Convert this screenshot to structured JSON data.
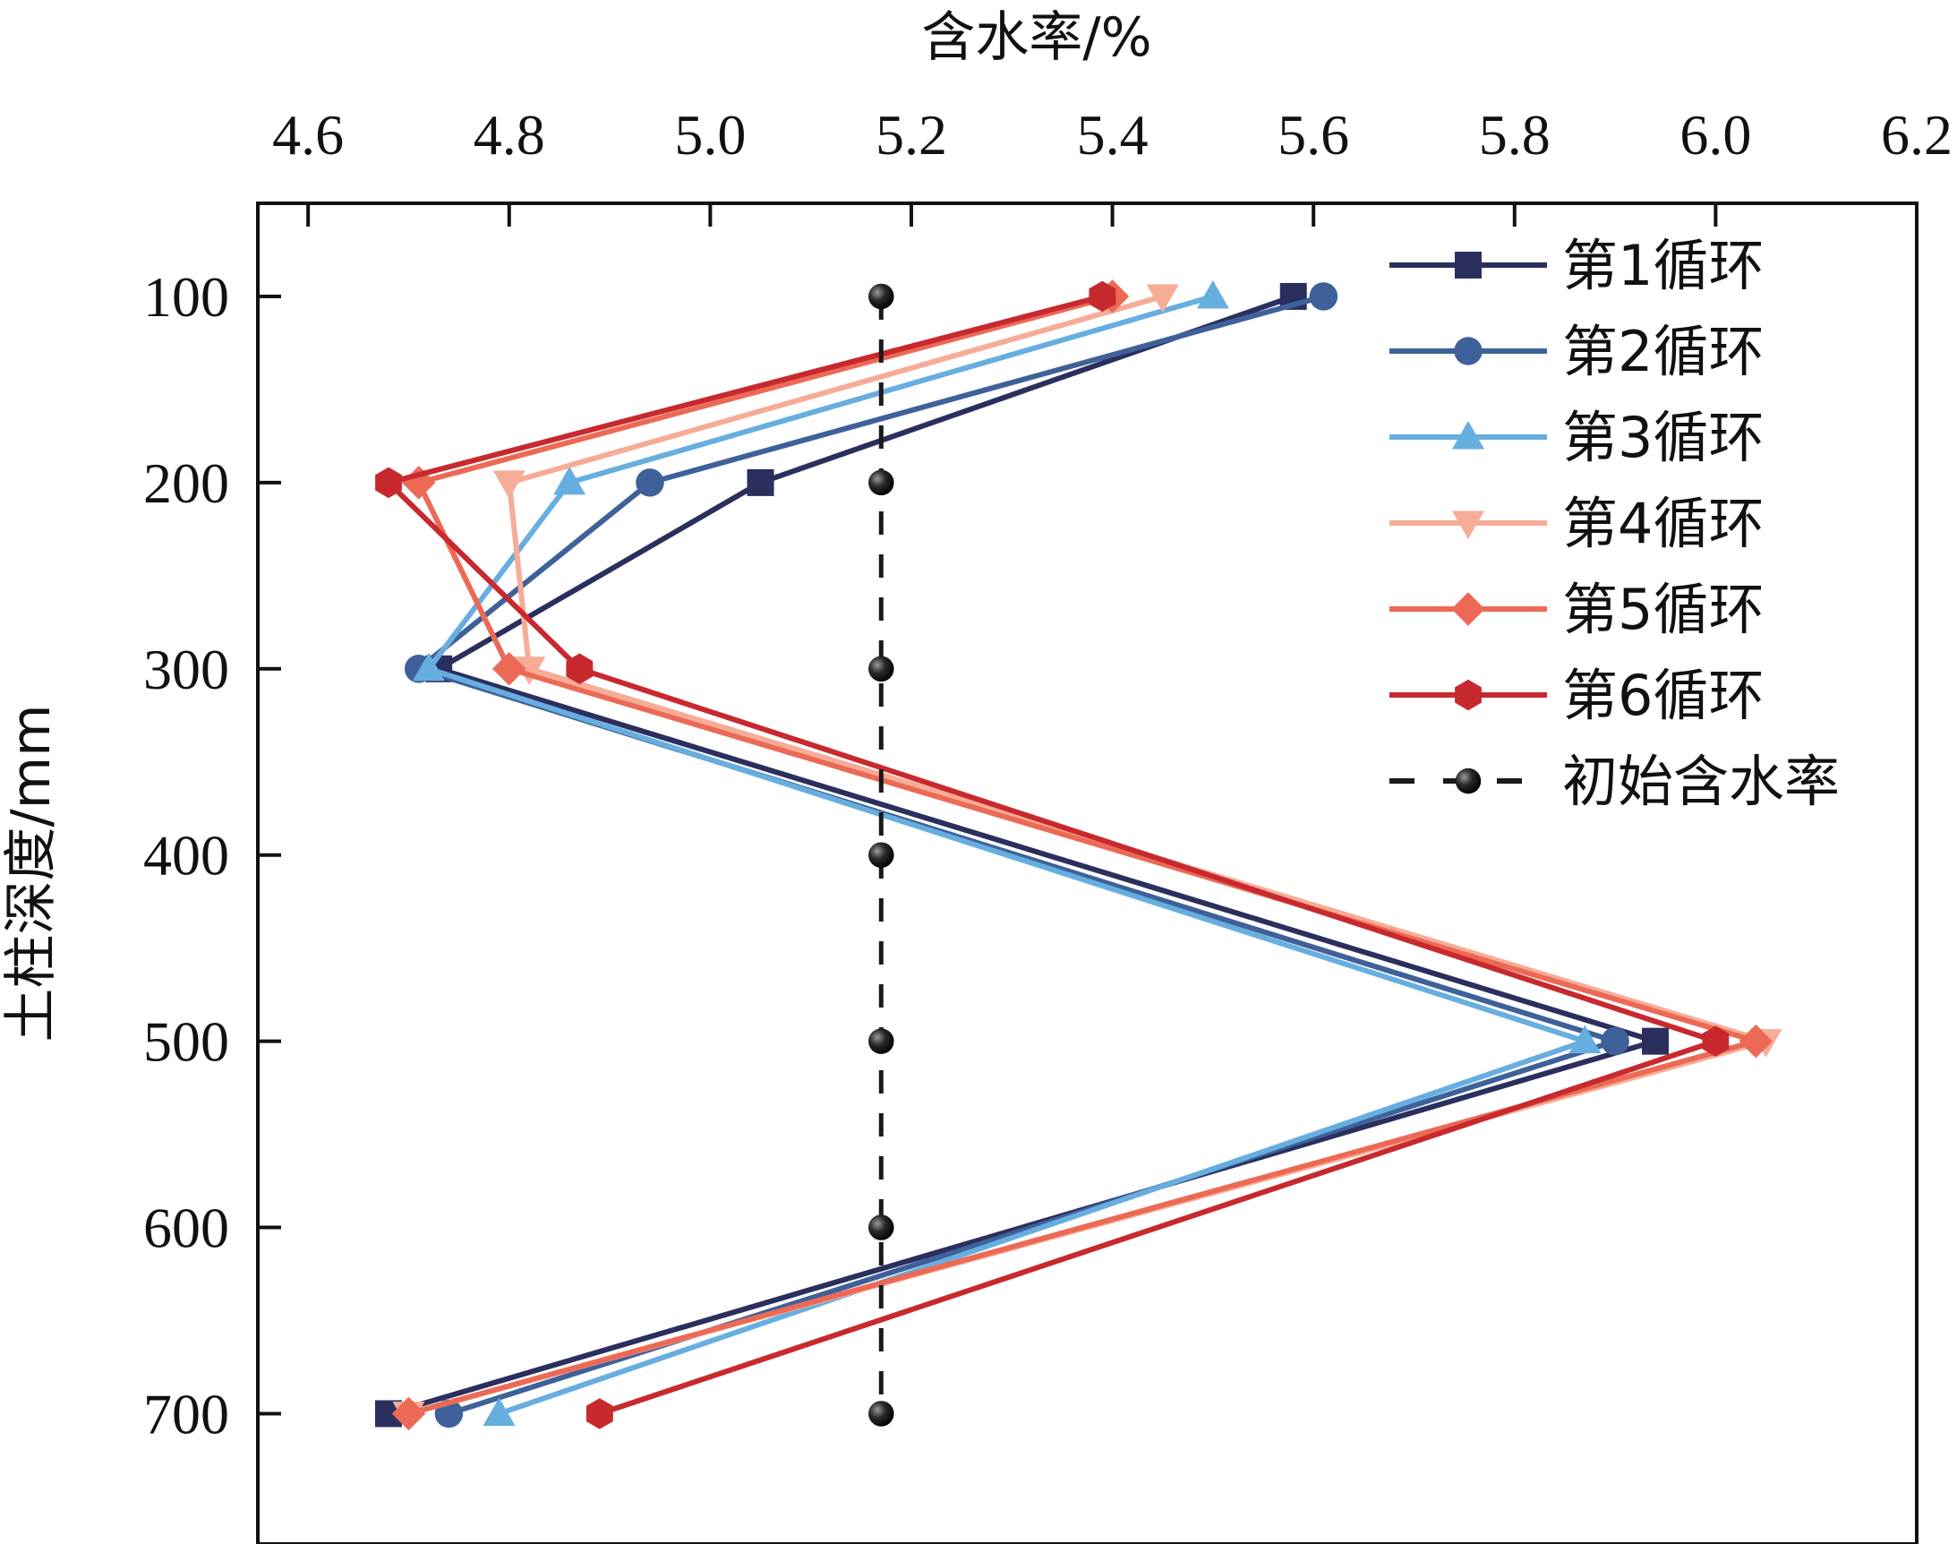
{
  "chart_data": {
    "type": "line",
    "xlabel": "含水率/%",
    "ylabel": "土柱深度/mm",
    "xlim": [
      4.55,
      6.2
    ],
    "ylim": [
      770,
      50
    ],
    "x_ticks": [
      4.6,
      4.8,
      5.0,
      5.2,
      5.4,
      5.6,
      5.8,
      6.0,
      6.2
    ],
    "x_tick_labels": [
      "4.6",
      "4.8",
      "5.0",
      "5.2",
      "5.4",
      "5.6",
      "5.8",
      "6.0",
      "6.2"
    ],
    "y_ticks": [
      100,
      200,
      300,
      400,
      500,
      600,
      700
    ],
    "y_tick_labels": [
      "100",
      "200",
      "300",
      "400",
      "500",
      "600",
      "700"
    ],
    "legend_position": "top-right",
    "series": [
      {
        "name": "第1循环",
        "marker": "square",
        "color": "#2b2f5e",
        "depth": [
          100,
          200,
          300,
          500,
          700
        ],
        "moisture": [
          5.58,
          5.05,
          4.73,
          5.94,
          4.68
        ]
      },
      {
        "name": "第2循环",
        "marker": "circle",
        "color": "#3f6199",
        "depth": [
          100,
          200,
          300,
          500,
          700
        ],
        "moisture": [
          5.61,
          4.94,
          4.71,
          5.9,
          4.74
        ]
      },
      {
        "name": "第3循环",
        "marker": "triangle-up",
        "color": "#67aee0",
        "depth": [
          100,
          200,
          300,
          500,
          700
        ],
        "moisture": [
          5.5,
          4.86,
          4.72,
          5.87,
          4.79
        ]
      },
      {
        "name": "第4循环",
        "marker": "triangle-down",
        "color": "#f6ac96",
        "depth": [
          100,
          200,
          300,
          500,
          700
        ],
        "moisture": [
          5.45,
          4.8,
          4.82,
          6.05,
          4.7
        ]
      },
      {
        "name": "第5循环",
        "marker": "diamond",
        "color": "#ec6a55",
        "depth": [
          100,
          200,
          300,
          500,
          700
        ],
        "moisture": [
          5.4,
          4.71,
          4.8,
          6.04,
          4.7
        ]
      },
      {
        "name": "第6循环",
        "marker": "hexagon",
        "color": "#c8292f",
        "depth": [
          100,
          200,
          300,
          500,
          700
        ],
        "moisture": [
          5.39,
          4.68,
          4.87,
          6.0,
          4.89
        ]
      },
      {
        "name": "初始含水率",
        "marker": "ball",
        "color": "#1a1a1a",
        "dashed": true,
        "depth": [
          100,
          200,
          300,
          400,
          500,
          600,
          700
        ],
        "moisture": [
          5.17,
          5.17,
          5.17,
          5.17,
          5.17,
          5.17,
          5.17
        ]
      }
    ]
  }
}
